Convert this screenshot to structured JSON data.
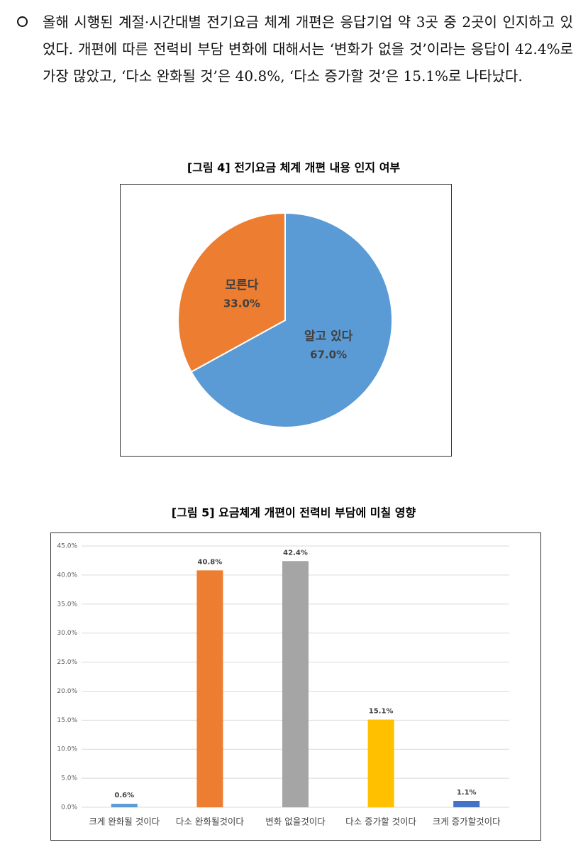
{
  "paragraph": "올해 시행된 계절·시간대별 전기요금 체계 개편은 응답기업 약 3곳 중 2곳이 인지하고 있었다. 개편에 따른 전력비 부담 변화에 대해서는 ‘변화가 없을 것’이라는 응답이 42.4%로 가장 많았고, ‘다소 완화될 것’은 40.8%, ‘다소 증가할 것’은 15.1%로 나타났다.",
  "chart_data": [
    {
      "type": "pie",
      "title": "[그림 4] 전기요금 체계 개편 내용 인지 여부",
      "categories": [
        "알고 있다",
        "모른다"
      ],
      "values": [
        67.0,
        33.0
      ],
      "value_labels": [
        "67.0%",
        "33.0%"
      ],
      "colors": [
        "#5b9bd5",
        "#ed7d31"
      ]
    },
    {
      "type": "bar",
      "title": "[그림 5] 요금체계 개편이 전력비 부담에 미칠 영향",
      "categories": [
        "크게 완화될 것이다",
        "다소 완화될것이다",
        "변화 없을것이다",
        "다소 증가할 것이다",
        "크게 증가할것이다"
      ],
      "values": [
        0.6,
        40.8,
        42.4,
        15.1,
        1.1
      ],
      "value_labels": [
        "0.6%",
        "40.8%",
        "42.4%",
        "15.1%",
        "1.1%"
      ],
      "colors": [
        "#5b9bd5",
        "#ed7d31",
        "#a5a5a5",
        "#ffc000",
        "#4472c4"
      ],
      "ylim": [
        0,
        45
      ],
      "yticks": [
        {
          "value": 0,
          "label": "0.0%"
        },
        {
          "value": 5,
          "label": "5.0%"
        },
        {
          "value": 10,
          "label": "10.0%"
        },
        {
          "value": 15,
          "label": "15.0%"
        },
        {
          "value": 20,
          "label": "20.0%"
        },
        {
          "value": 25,
          "label": "25.0%"
        },
        {
          "value": 30,
          "label": "30.0%"
        },
        {
          "value": 35,
          "label": "35.0%"
        },
        {
          "value": 40,
          "label": "40.0%"
        },
        {
          "value": 45,
          "label": "45.0%"
        }
      ],
      "grid": true
    }
  ]
}
